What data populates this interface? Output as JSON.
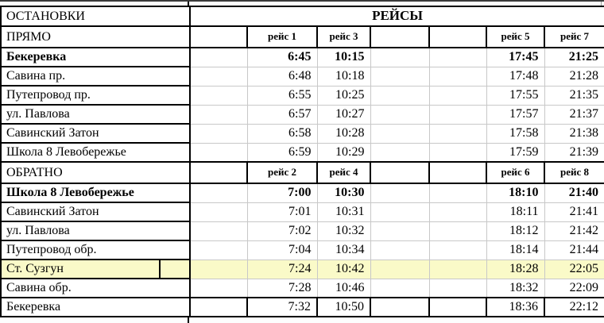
{
  "table": {
    "stops_header": "ОСТАНОВКИ",
    "trips_header": "РЕЙСЫ",
    "highlight_color": "#FAFAC8",
    "border_color": "#000000",
    "grid_color": "#C8C8C8",
    "sections": [
      {
        "direction_label": "ПРЯМО",
        "trip_labels": [
          "",
          "рейс 1",
          "рейс 3",
          "",
          "",
          "рейс 5",
          "рейс 7"
        ],
        "rows": [
          {
            "stop": "Бекеревка",
            "bold": true,
            "times": [
              "",
              "6:45",
              "10:15",
              "",
              "",
              "17:45",
              "21:25"
            ]
          },
          {
            "stop": "Савина пр.",
            "times": [
              "",
              "6:48",
              "10:18",
              "",
              "",
              "17:48",
              "21:28"
            ]
          },
          {
            "stop": "Путепровод пр.",
            "times": [
              "",
              "6:55",
              "10:25",
              "",
              "",
              "17:55",
              "21:35"
            ]
          },
          {
            "stop": "ул. Павлова",
            "times": [
              "",
              "6:57",
              "10:27",
              "",
              "",
              "17:57",
              "21:37"
            ]
          },
          {
            "stop": "Савинский Затон",
            "times": [
              "",
              "6:58",
              "10:28",
              "",
              "",
              "17:58",
              "21:38"
            ]
          },
          {
            "stop": "Школа 8 Левобережье",
            "times": [
              "",
              "6:59",
              "10:29",
              "",
              "",
              "17:59",
              "21:39"
            ]
          }
        ]
      },
      {
        "direction_label": "ОБРАТНО",
        "trip_labels": [
          "",
          "рейс 2",
          "рейс 4",
          "",
          "",
          "рейс 6",
          "рейс 8"
        ],
        "rows": [
          {
            "stop": "Школа 8 Левобережье",
            "bold": true,
            "times": [
              "",
              "7:00",
              "10:30",
              "",
              "",
              "18:10",
              "21:40"
            ]
          },
          {
            "stop": "Савинский Затон",
            "times": [
              "",
              "7:01",
              "10:31",
              "",
              "",
              "18:11",
              "21:41"
            ]
          },
          {
            "stop": "ул. Павлова",
            "times": [
              "",
              "7:02",
              "10:32",
              "",
              "",
              "18:12",
              "21:42"
            ]
          },
          {
            "stop": "Путепровод обр.",
            "times": [
              "",
              "7:04",
              "10:34",
              "",
              "",
              "18:14",
              "21:44"
            ]
          },
          {
            "stop": "Ст. Сузгун",
            "highlighted": true,
            "split_stop_cell": true,
            "times": [
              "",
              "7:24",
              "10:42",
              "",
              "",
              "18:28",
              "22:05"
            ]
          },
          {
            "stop": "Савина обр.",
            "times": [
              "",
              "7:28",
              "10:46",
              "",
              "",
              "18:32",
              "22:09"
            ]
          },
          {
            "stop": "Бекеревка",
            "last": true,
            "times": [
              "",
              "7:32",
              "10:50",
              "",
              "",
              "18:36",
              "22:12"
            ]
          }
        ]
      }
    ]
  }
}
